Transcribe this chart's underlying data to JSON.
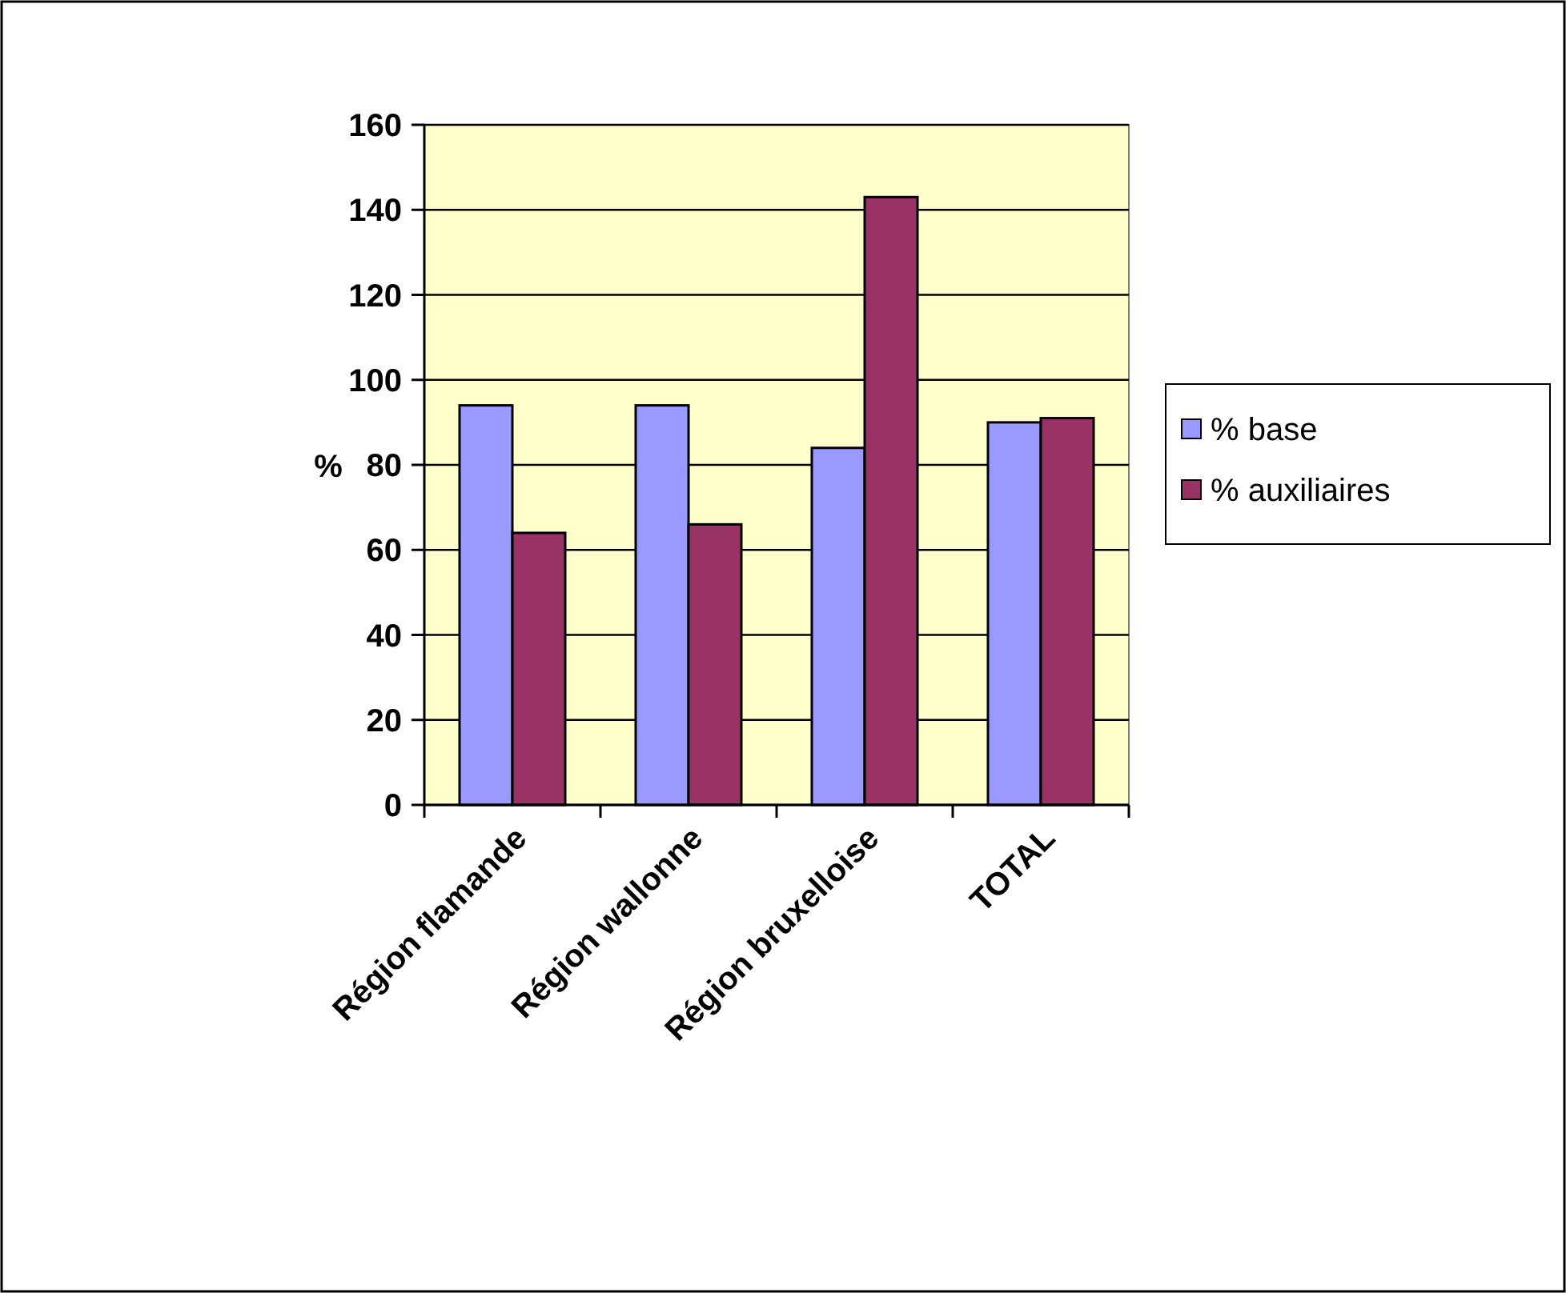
{
  "chart_data": {
    "type": "bar",
    "ylabel": "%",
    "categories": [
      "Région flamande",
      "Région wallonne",
      "Région bruxelloise",
      "TOTAL"
    ],
    "series": [
      {
        "name": "% base",
        "color": "#9999ff",
        "values": [
          94,
          94,
          84,
          90
        ]
      },
      {
        "name": "% auxiliaires",
        "color": "#993366",
        "values": [
          64,
          66,
          143,
          91
        ]
      }
    ],
    "ylim": [
      0,
      160
    ],
    "yticks": [
      0,
      20,
      40,
      60,
      80,
      100,
      120,
      140,
      160
    ],
    "grid": "y",
    "legend": "right"
  }
}
